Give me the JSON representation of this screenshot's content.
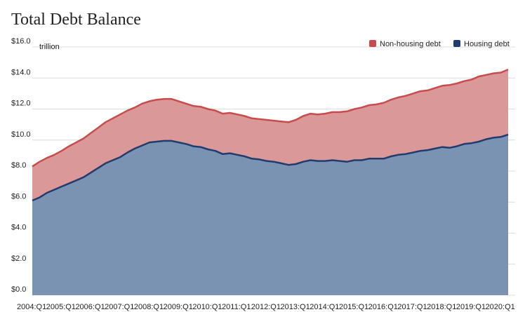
{
  "chart_data": {
    "type": "area",
    "stacked": true,
    "title": "Total Debt Balance",
    "ylabel": "trillion",
    "xlabel": "",
    "ylim": [
      0,
      16
    ],
    "y_ticks": [
      "$0.0",
      "$2.0",
      "$4.0",
      "$6.0",
      "$8.0",
      "$10.0",
      "$12.0",
      "$14.0",
      "$16.0"
    ],
    "x_tick_labels": [
      "2004:Q1",
      "2005:Q1",
      "2006:Q1",
      "2007:Q1",
      "2008:Q1",
      "2009:Q1",
      "2010:Q1",
      "2011:Q1",
      "2012:Q1",
      "2013:Q1",
      "2014:Q1",
      "2015:Q1",
      "2016:Q1",
      "2017:Q1",
      "2018:Q1",
      "2019:Q1",
      "2020:Q1"
    ],
    "legend_position": "top-right",
    "grid": true,
    "colors": {
      "housing_fill": "#7b93b3",
      "housing_line": "#1f3c6e",
      "nonhousing_fill": "#da9898",
      "nonhousing_line": "#c94c4c",
      "grid": "#dcdcdc",
      "legend_nonhousing": "#c94c4c",
      "legend_housing": "#1f3c6e"
    },
    "series": [
      {
        "name": "Housing debt",
        "values": [
          6.1,
          6.3,
          6.6,
          6.8,
          7.0,
          7.2,
          7.4,
          7.6,
          7.9,
          8.2,
          8.5,
          8.7,
          8.9,
          9.2,
          9.45,
          9.65,
          9.85,
          9.9,
          9.95,
          9.95,
          9.85,
          9.75,
          9.6,
          9.55,
          9.4,
          9.3,
          9.1,
          9.15,
          9.05,
          8.95,
          8.8,
          8.75,
          8.65,
          8.6,
          8.5,
          8.4,
          8.45,
          8.6,
          8.7,
          8.65,
          8.65,
          8.7,
          8.65,
          8.6,
          8.7,
          8.7,
          8.8,
          8.8,
          8.8,
          8.95,
          9.05,
          9.1,
          9.2,
          9.3,
          9.35,
          9.45,
          9.55,
          9.5,
          9.6,
          9.75,
          9.8,
          9.9,
          10.05,
          10.15,
          10.2,
          10.35
        ]
      },
      {
        "name": "Non-housing debt",
        "values": [
          2.2,
          2.3,
          2.25,
          2.25,
          2.3,
          2.4,
          2.45,
          2.5,
          2.55,
          2.6,
          2.65,
          2.7,
          2.75,
          2.7,
          2.65,
          2.7,
          2.65,
          2.7,
          2.7,
          2.7,
          2.65,
          2.6,
          2.6,
          2.6,
          2.6,
          2.6,
          2.6,
          2.6,
          2.6,
          2.6,
          2.6,
          2.6,
          2.65,
          2.65,
          2.7,
          2.75,
          2.85,
          2.95,
          3.0,
          3.0,
          3.05,
          3.1,
          3.15,
          3.25,
          3.3,
          3.4,
          3.45,
          3.5,
          3.6,
          3.65,
          3.7,
          3.75,
          3.8,
          3.85,
          3.85,
          3.9,
          3.95,
          4.05,
          4.05,
          4.05,
          4.1,
          4.2,
          4.15,
          4.15,
          4.15,
          4.2
        ]
      }
    ]
  }
}
